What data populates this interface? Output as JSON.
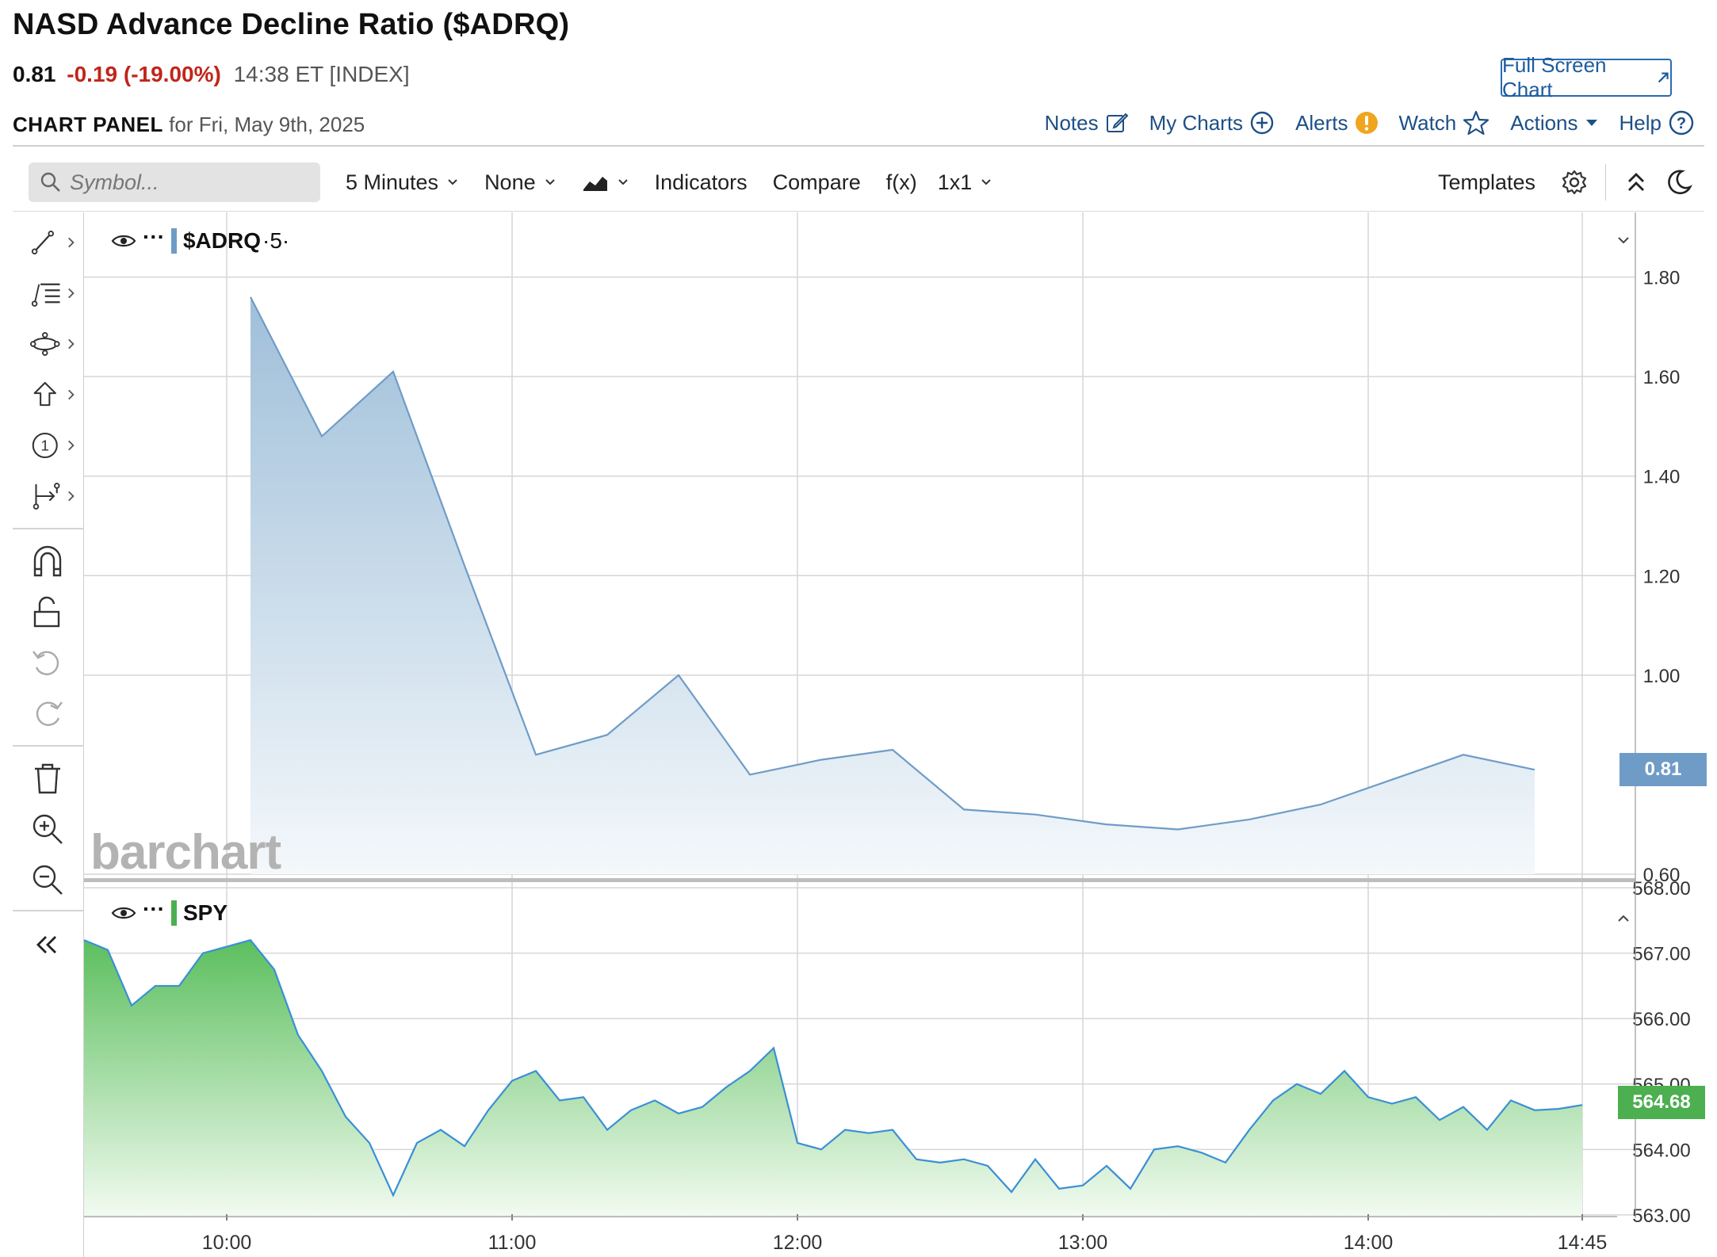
{
  "header": {
    "title": "NASD Advance Decline Ratio ($ADRQ)",
    "last": "0.81",
    "change": "-0.19 (-19.00%)",
    "time": "14:38 ET [INDEX]",
    "full_screen_label": "Full Screen Chart",
    "panel_label": "CHART PANEL",
    "panel_date": "for Fri, May 9th, 2025"
  },
  "top_links": {
    "notes": "Notes",
    "my_charts": "My Charts",
    "alerts": "Alerts",
    "watch": "Watch",
    "actions": "Actions",
    "help": "Help"
  },
  "toolbar": {
    "search_placeholder": "Symbol...",
    "interval": "5 Minutes",
    "none": "None",
    "indicators": "Indicators",
    "compare": "Compare",
    "fx": "f(x)",
    "layout": "1x1",
    "templates": "Templates"
  },
  "icons": [
    "search-icon",
    "chevron-down-icon",
    "chart-type-icon",
    "gear-icon",
    "collapse-up-icon",
    "moon-icon",
    "pencil-icon",
    "plus-circle-icon",
    "alert-icon",
    "star-icon",
    "help-icon",
    "external-link-icon",
    "eye-icon",
    "magnet-icon",
    "unlock-icon",
    "undo-icon",
    "redo-icon",
    "trash-icon",
    "zoom-in-icon",
    "zoom-out-icon",
    "double-chevron-left-icon"
  ],
  "watermark": "barchart",
  "chart_data": [
    {
      "type": "area",
      "series": [
        {
          "name": "$ADRQ",
          "legend_suffix": "·5·",
          "color": "#6f9cc7"
        }
      ],
      "x": [
        "10:05",
        "10:20",
        "10:35",
        "10:50",
        "11:05",
        "11:20",
        "11:35",
        "11:50",
        "12:05",
        "12:20",
        "12:35",
        "12:50",
        "13:05",
        "13:20",
        "13:35",
        "13:50",
        "14:05",
        "14:20",
        "14:35"
      ],
      "values": [
        1.76,
        1.48,
        1.61,
        1.22,
        0.84,
        0.88,
        1.0,
        0.8,
        0.83,
        0.85,
        0.73,
        0.72,
        0.7,
        0.69,
        0.71,
        0.74,
        0.79,
        0.84,
        0.81
      ],
      "yticks": [
        "1.80",
        "1.60",
        "1.40",
        "1.20",
        "1.00",
        "0.60"
      ],
      "ylim": [
        0.6,
        1.93
      ],
      "last_label": "0.81",
      "grid": true
    },
    {
      "type": "area",
      "series": [
        {
          "name": "SPY",
          "color": "#4caf50"
        }
      ],
      "x_start": "09:30",
      "x_step_minutes": 5,
      "values": [
        567.2,
        567.05,
        566.2,
        566.5,
        566.5,
        567.0,
        567.1,
        567.2,
        566.75,
        565.75,
        565.2,
        564.5,
        564.1,
        563.3,
        564.1,
        564.3,
        564.05,
        564.6,
        565.05,
        565.2,
        564.75,
        564.8,
        564.3,
        564.6,
        564.75,
        564.55,
        564.65,
        564.95,
        565.2,
        565.55,
        564.1,
        564.0,
        564.3,
        564.25,
        564.3,
        563.85,
        563.8,
        563.85,
        563.75,
        563.35,
        563.85,
        563.4,
        563.45,
        563.75,
        563.4,
        564.0,
        564.05,
        563.95,
        563.8,
        564.3,
        564.75,
        565.0,
        564.85,
        565.2,
        564.8,
        564.7,
        564.8,
        564.45,
        564.65,
        564.3,
        564.75,
        564.6,
        564.62,
        564.68
      ],
      "yticks": [
        "568.00",
        "567.00",
        "566.00",
        "565.00",
        "564.00",
        "563.00"
      ],
      "ylim": [
        562.95,
        568.05
      ],
      "last_label": "564.68",
      "grid": true
    }
  ],
  "x_axis_labels": [
    "10:00",
    "11:00",
    "12:00",
    "13:00",
    "14:00",
    "14:45"
  ]
}
